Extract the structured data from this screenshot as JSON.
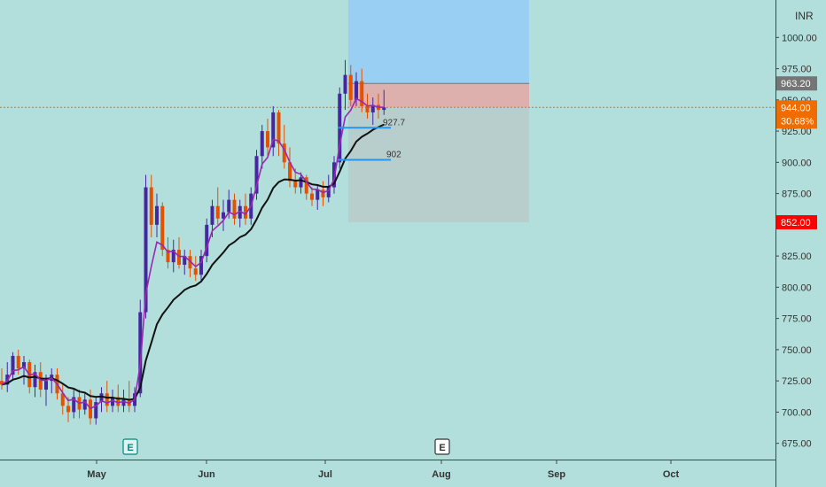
{
  "currency": "INR",
  "colors": {
    "background": "#b2dfdb",
    "up": "#4527a0",
    "down": "#e65100",
    "ema_fast": "#9c27b0",
    "ema_slow": "#111111",
    "level_line": "#2196f3",
    "current_price": "#ef6c00",
    "stop_price": "#ff0000",
    "target_price": "#757575",
    "profit_zone": "#90caf9",
    "loss_zone": "#ef9a9a",
    "projection_zone": "#bdbdbd"
  },
  "labels": {
    "current_price": "944.00",
    "change_pct": "30.68%",
    "target_price": "963.20",
    "stop_price": "852.00",
    "level_1": "927.7",
    "level_2": "902",
    "earnings_marker_1": "E",
    "earnings_marker_2": "E"
  },
  "chart_data": {
    "type": "candlestick",
    "y_ticks": [
      "675.00",
      "700.00",
      "725.00",
      "750.00",
      "775.00",
      "800.00",
      "825.00",
      "850.00",
      "875.00",
      "900.00",
      "925.00",
      "950.00",
      "975.00",
      "1000.00"
    ],
    "x_ticks": [
      "May",
      "Jun",
      "Jul",
      "Aug",
      "Sep",
      "Oct"
    ],
    "ylim": [
      662,
      1030
    ],
    "levels": [
      {
        "label": "927.7",
        "value": 927.7
      },
      {
        "label": "902",
        "value": 902
      }
    ],
    "position": {
      "entry": 944.0,
      "target": 963.2,
      "stop": 852.0
    },
    "series": [
      {
        "name": "candles",
        "ohlc": [
          [
            725,
            735,
            718,
            722
          ],
          [
            722,
            740,
            716,
            730
          ],
          [
            730,
            748,
            725,
            745
          ],
          [
            745,
            750,
            730,
            735
          ],
          [
            735,
            745,
            722,
            740
          ],
          [
            740,
            742,
            715,
            720
          ],
          [
            720,
            738,
            712,
            732
          ],
          [
            732,
            740,
            712,
            718
          ],
          [
            718,
            730,
            705,
            725
          ],
          [
            725,
            735,
            715,
            730
          ],
          [
            730,
            735,
            710,
            715
          ],
          [
            715,
            722,
            698,
            705
          ],
          [
            705,
            712,
            692,
            700
          ],
          [
            700,
            718,
            695,
            712
          ],
          [
            712,
            718,
            695,
            702
          ],
          [
            702,
            715,
            698,
            710
          ],
          [
            710,
            718,
            690,
            695
          ],
          [
            695,
            712,
            690,
            708
          ],
          [
            708,
            720,
            700,
            715
          ],
          [
            715,
            725,
            700,
            705
          ],
          [
            705,
            718,
            700,
            712
          ],
          [
            712,
            722,
            700,
            705
          ],
          [
            705,
            718,
            700,
            710
          ],
          [
            710,
            725,
            700,
            705
          ],
          [
            705,
            720,
            700,
            715
          ],
          [
            715,
            790,
            712,
            780
          ],
          [
            780,
            890,
            775,
            880
          ],
          [
            880,
            890,
            840,
            850
          ],
          [
            850,
            875,
            840,
            865
          ],
          [
            865,
            868,
            825,
            830
          ],
          [
            830,
            840,
            815,
            820
          ],
          [
            820,
            838,
            812,
            830
          ],
          [
            830,
            840,
            815,
            818
          ],
          [
            818,
            830,
            810,
            825
          ],
          [
            825,
            830,
            808,
            815
          ],
          [
            815,
            825,
            805,
            810
          ],
          [
            810,
            830,
            805,
            825
          ],
          [
            825,
            855,
            820,
            850
          ],
          [
            850,
            870,
            840,
            865
          ],
          [
            865,
            880,
            850,
            855
          ],
          [
            855,
            870,
            845,
            860
          ],
          [
            860,
            878,
            855,
            870
          ],
          [
            870,
            875,
            850,
            855
          ],
          [
            855,
            870,
            848,
            865
          ],
          [
            865,
            875,
            850,
            855
          ],
          [
            855,
            880,
            850,
            875
          ],
          [
            875,
            910,
            870,
            905
          ],
          [
            905,
            930,
            895,
            925
          ],
          [
            925,
            935,
            905,
            912
          ],
          [
            912,
            945,
            905,
            940
          ],
          [
            940,
            942,
            905,
            915
          ],
          [
            915,
            930,
            895,
            900
          ],
          [
            900,
            912,
            880,
            885
          ],
          [
            885,
            895,
            875,
            880
          ],
          [
            880,
            892,
            875,
            888
          ],
          [
            888,
            890,
            870,
            875
          ],
          [
            875,
            880,
            865,
            870
          ],
          [
            870,
            882,
            862,
            878
          ],
          [
            878,
            885,
            865,
            872
          ],
          [
            872,
            890,
            868,
            880
          ],
          [
            880,
            905,
            875,
            900
          ],
          [
            900,
            960,
            895,
            955
          ],
          [
            955,
            982,
            942,
            970
          ],
          [
            970,
            978,
            945,
            950
          ],
          [
            950,
            972,
            945,
            965
          ],
          [
            965,
            975,
            940,
            945
          ],
          [
            945,
            955,
            935,
            940
          ],
          [
            940,
            952,
            930,
            946
          ],
          [
            946,
            955,
            935,
            942
          ],
          [
            942,
            958,
            938,
            944
          ]
        ]
      }
    ]
  }
}
